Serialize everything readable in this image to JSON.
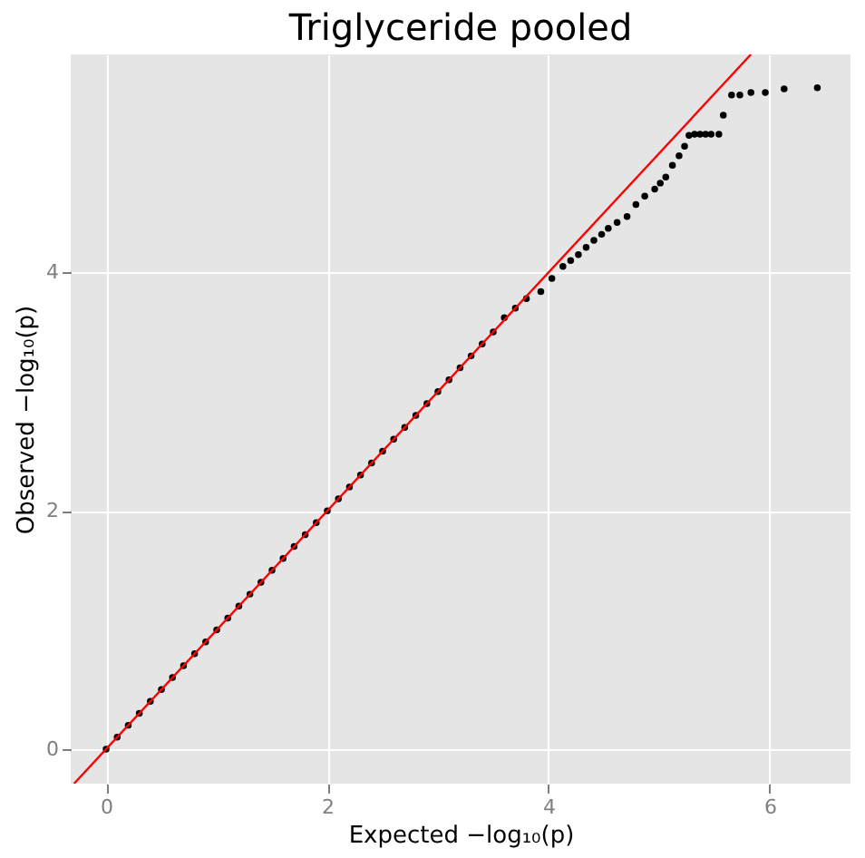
{
  "chart_data": {
    "type": "scatter",
    "title": "Triglyceride pooled",
    "xlabel": "Expected −log₁₀(p)",
    "ylabel": "Observed −log₁₀(p)",
    "xlim": [
      -0.32,
      6.73
    ],
    "ylim": [
      -0.29,
      5.83
    ],
    "xticks": [
      0,
      2,
      4,
      6
    ],
    "yticks": [
      0,
      2,
      4
    ],
    "grid": true,
    "marker": "circle",
    "series": [
      {
        "color": "#000000",
        "x": [
          0,
          0.1,
          0.2,
          0.3,
          0.4,
          0.5,
          0.6,
          0.7,
          0.8,
          0.9,
          1.0,
          1.1,
          1.2,
          1.3,
          1.4,
          1.5,
          1.6,
          1.7,
          1.8,
          1.9,
          2.0,
          2.1,
          2.2,
          2.3,
          2.4,
          2.5,
          2.6,
          2.7,
          2.8,
          2.9,
          3.0,
          3.1,
          3.2,
          3.3,
          3.4,
          3.5,
          3.6,
          3.7,
          3.8,
          3.93,
          4.03,
          4.13,
          4.2,
          4.27,
          4.34,
          4.41,
          4.48,
          4.54,
          4.62,
          4.71,
          4.79,
          4.87,
          4.96,
          5.01,
          5.06,
          5.12,
          5.18,
          5.23,
          5.27,
          5.32,
          5.37,
          5.42,
          5.47,
          5.54,
          5.58,
          5.655,
          5.73,
          5.83,
          5.96,
          6.13,
          6.43
        ],
        "values": [
          0,
          0.1,
          0.2,
          0.3,
          0.4,
          0.5,
          0.6,
          0.7,
          0.8,
          0.9,
          1.0,
          1.1,
          1.2,
          1.3,
          1.4,
          1.5,
          1.6,
          1.7,
          1.8,
          1.9,
          2.0,
          2.1,
          2.2,
          2.3,
          2.4,
          2.5,
          2.6,
          2.7,
          2.8,
          2.9,
          3.0,
          3.1,
          3.2,
          3.3,
          3.4,
          3.5,
          3.62,
          3.7,
          3.78,
          3.84,
          3.95,
          4.05,
          4.1,
          4.15,
          4.21,
          4.27,
          4.32,
          4.37,
          4.42,
          4.47,
          4.57,
          4.64,
          4.7,
          4.75,
          4.8,
          4.9,
          4.98,
          5.06,
          5.15,
          5.16,
          5.16,
          5.16,
          5.16,
          5.16,
          5.32,
          5.49,
          5.49,
          5.51,
          5.51,
          5.54,
          5.55
        ]
      },
      {
        "type": "line",
        "marker": "none",
        "color": "#ff0000",
        "x": [
          -0.29,
          5.83
        ],
        "values": [
          -0.29,
          5.83
        ]
      }
    ]
  }
}
